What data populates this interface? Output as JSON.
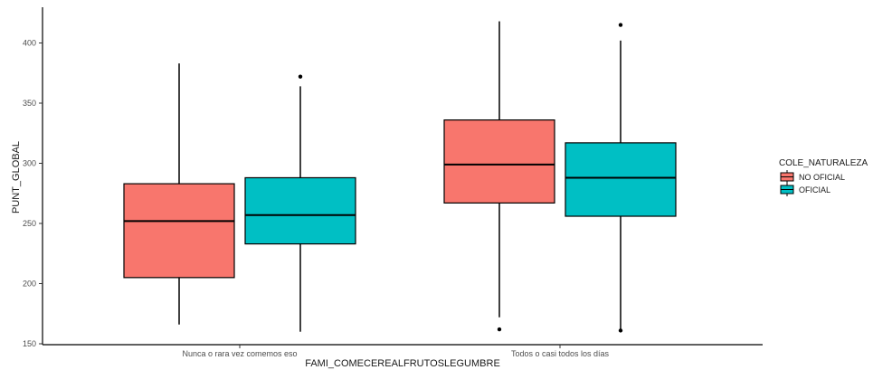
{
  "chart_data": {
    "type": "boxplot",
    "xlabel": "FAMI_COMECEREALFRUTOSLEGUMBRE",
    "ylabel": "PUNT_GLOBAL",
    "ylim": [
      150,
      420
    ],
    "yticks": [
      150,
      200,
      250,
      300,
      350,
      400
    ],
    "categories": [
      "Nunca o rara vez comemos eso",
      "Todos o casi todos los días"
    ],
    "legend": {
      "title": "COLE_NATURALEZA",
      "position": "right",
      "entries": [
        {
          "name": "NO OFICIAL",
          "color": "#f8766d"
        },
        {
          "name": "OFICIAL",
          "color": "#00bfc4"
        }
      ]
    },
    "grid": false,
    "series": [
      {
        "name": "NO OFICIAL",
        "color": "#f8766d",
        "boxes": [
          {
            "min": 166,
            "q1": 205,
            "median": 252,
            "q3": 283,
            "max": 383,
            "outliers": []
          },
          {
            "min": 172,
            "q1": 267,
            "median": 299,
            "q3": 336,
            "max": 418,
            "outliers": [
              162
            ]
          }
        ]
      },
      {
        "name": "OFICIAL",
        "color": "#00bfc4",
        "boxes": [
          {
            "min": 160,
            "q1": 233,
            "median": 257,
            "q3": 288,
            "max": 364,
            "outliers": [
              372
            ]
          },
          {
            "min": 162,
            "q1": 256,
            "median": 288,
            "q3": 317,
            "max": 402,
            "outliers": [
              415,
              161
            ]
          }
        ]
      }
    ]
  }
}
